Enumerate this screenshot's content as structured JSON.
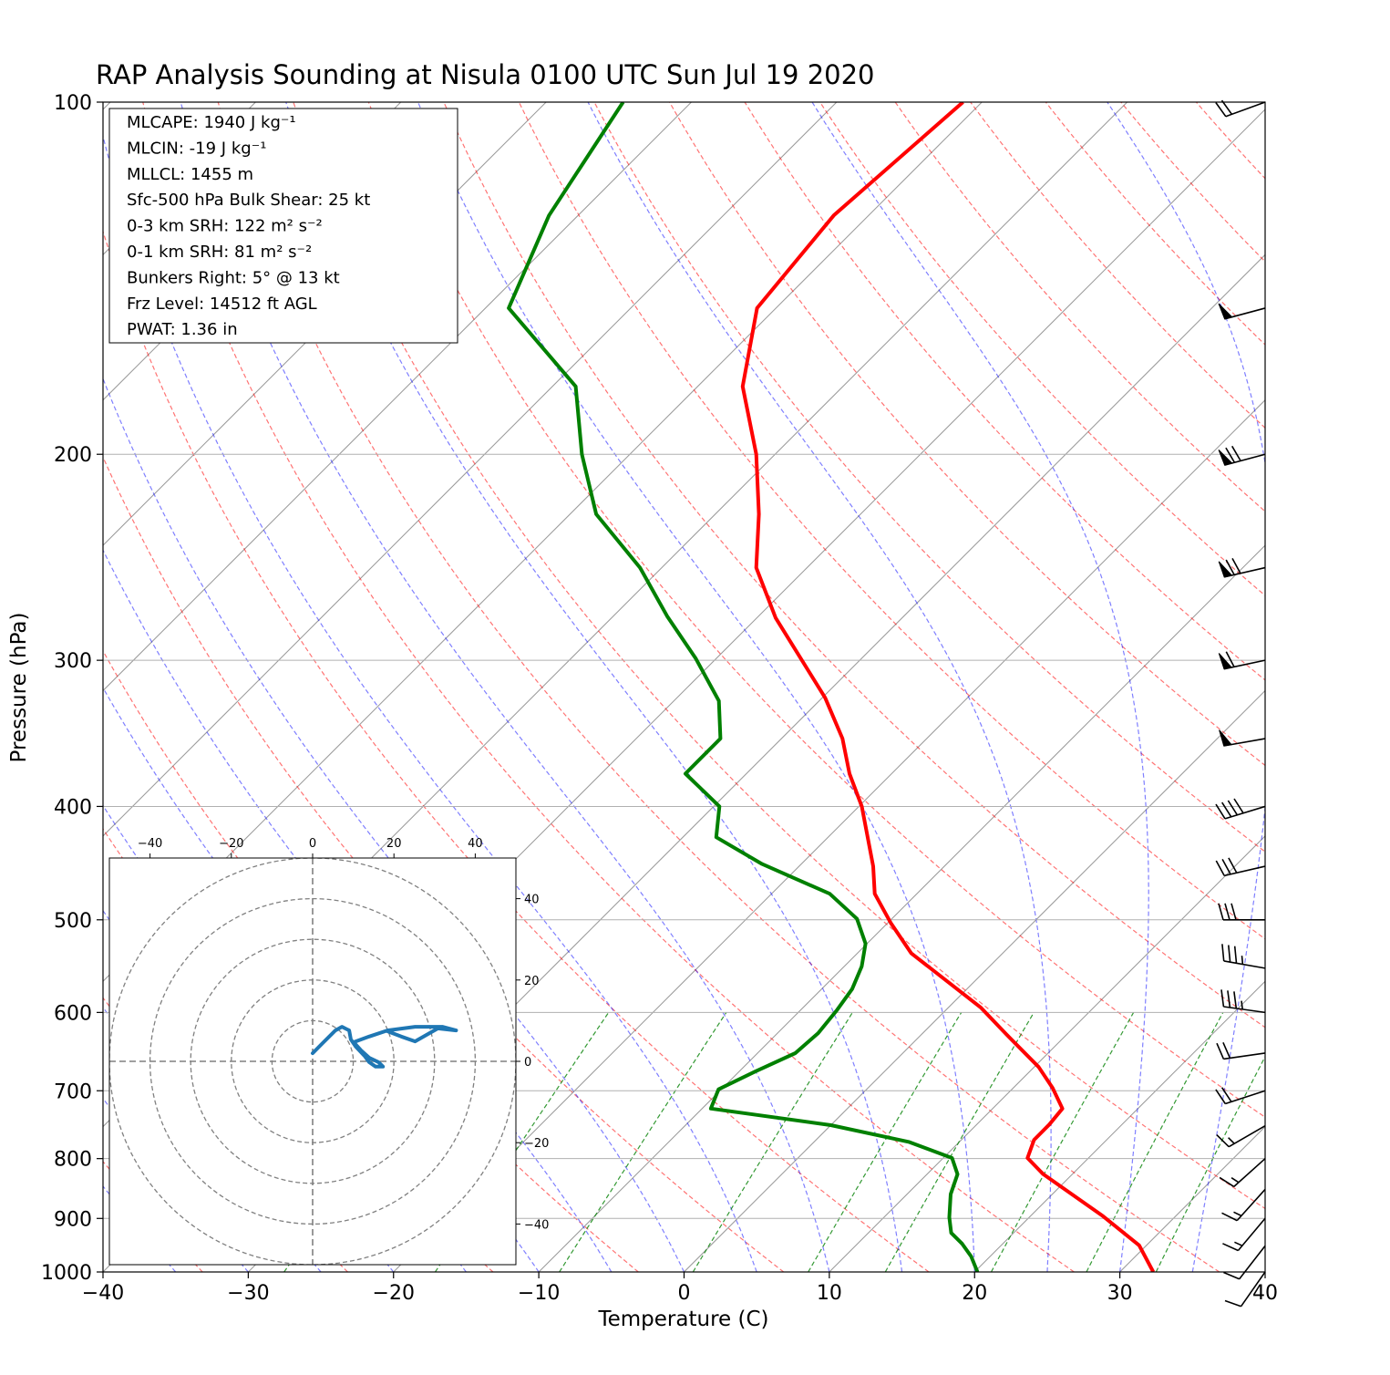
{
  "chart_data": [
    {
      "type": "skewt",
      "title": "RAP Analysis Sounding at Nisula 0100 UTC Sun Jul 19 2020",
      "xlabel": "Temperature (C)",
      "ylabel": "Pressure (hPa)",
      "xlim": [
        -40,
        40
      ],
      "ylim": [
        1000,
        100
      ],
      "log_y": true,
      "grid": true,
      "xticks": [
        {
          "value": -40,
          "label": "−40"
        },
        {
          "value": -30,
          "label": "−30"
        },
        {
          "value": -20,
          "label": "−20"
        },
        {
          "value": -10,
          "label": "−10"
        },
        0,
        10,
        20,
        30,
        40
      ],
      "yticks": [
        100,
        200,
        300,
        400,
        500,
        600,
        700,
        800,
        900,
        1000
      ],
      "series": [
        {
          "color": "#ff0000",
          "pressure": [
            1000,
            949,
            896,
            825,
            799,
            771,
            748,
            725,
            696,
            668,
            627,
            594,
            534,
            503,
            475,
            450,
            400,
            375,
            350,
            323,
            276,
            250,
            225,
            200,
            175,
            150,
            125,
            100
          ],
          "values": [
            32.3,
            29.5,
            25.0,
            18.0,
            15.8,
            15.0,
            15.0,
            14.8,
            12.7,
            10.3,
            5.9,
            2.2,
            -6.3,
            -9.8,
            -12.9,
            -14.9,
            -19.8,
            -22.9,
            -25.8,
            -29.8,
            -38.7,
            -43.5,
            -47.0,
            -51.3,
            -56.9,
            -61.3,
            -62.4,
            -61.3
          ]
        },
        {
          "color": "#008000",
          "pressure": [
            1000,
            970,
            946,
            926,
            898,
            858,
            825,
            799,
            774,
            749,
            725,
            698,
            674,
            650,
            625,
            597,
            573,
            548,
            524,
            499,
            475,
            448,
            425,
            400,
            375,
            350,
            325,
            299,
            275,
            250,
            225,
            200,
            175,
            150,
            125,
            100
          ],
          "values": [
            20.2,
            18.7,
            17.2,
            15.7,
            14.5,
            13.0,
            12.1,
            10.6,
            6.5,
            0.0,
            -9.4,
            -10.2,
            -8.9,
            -7.4,
            -7.2,
            -7.5,
            -7.9,
            -8.8,
            -10.1,
            -12.4,
            -16.0,
            -22.7,
            -27.7,
            -29.6,
            -34.2,
            -34.2,
            -36.9,
            -41.4,
            -46.3,
            -51.5,
            -58.2,
            -63.3,
            -68.4,
            -78.4,
            -82.0,
            -84.7
          ]
        }
      ],
      "barbs": {
        "pressure": [
          100,
          150,
          200,
          250,
          300,
          350,
          400,
          450,
          500,
          550,
          600,
          650,
          700,
          750,
          800,
          850,
          900,
          950,
          1000
        ],
        "speed": [
          20,
          50,
          70,
          70,
          60,
          50,
          40,
          30,
          30,
          35,
          35,
          20,
          20,
          15,
          15,
          15,
          15,
          10,
          10
        ],
        "direction": [
          250,
          255,
          255,
          257,
          258,
          260,
          253,
          257,
          270,
          280,
          278,
          262,
          252,
          240,
          228,
          222,
          220,
          218,
          215
        ]
      },
      "annotations": [
        "MLCAPE: 1940 J kg⁻¹",
        "MLCIN: -19 J kg⁻¹",
        "MLLCL: 1455 m",
        "Sfc-500 hPa Bulk Shear: 25 kt",
        "0-3 km SRH: 122 m² s⁻²",
        "0-1 km SRH: 81 m² s⁻²",
        "Bunkers Right: 5° @ 13 kt",
        "Frz Level: 14512 ft AGL",
        "PWAT: 1.36 in"
      ]
    },
    {
      "type": "hodograph",
      "xlim": [
        -50,
        50
      ],
      "ylim": [
        -50,
        50
      ],
      "xticks": [
        {
          "value": -40,
          "label": "−40"
        },
        {
          "value": -20,
          "label": "−20"
        },
        0,
        20,
        40
      ],
      "yticks": [
        {
          "value": -40,
          "label": "−40"
        },
        {
          "value": -20,
          "label": "−20"
        },
        0,
        20,
        40
      ],
      "rings": [
        10,
        20,
        30,
        40,
        50
      ],
      "color": "#1f77b4",
      "x": [
        0,
        2.7,
        5.6,
        7.2,
        9.0,
        9.4,
        10.6,
        12.8,
        13.9,
        15.5,
        17.3,
        16.2,
        13.9,
        11.9,
        10.1,
        13.9,
        18.4,
        25.2,
        31.9,
        35.3,
        30.8,
        25.2,
        21.8,
        18.4
      ],
      "values": [
        2.0,
        4.7,
        7.6,
        8.5,
        7.6,
        5.4,
        3.6,
        1.3,
        -0.2,
        -1.3,
        -1.3,
        -0.2,
        0.9,
        2.7,
        4.7,
        6.1,
        7.6,
        8.5,
        8.5,
        7.6,
        8.1,
        4.9,
        6.1,
        7.4
      ]
    }
  ]
}
